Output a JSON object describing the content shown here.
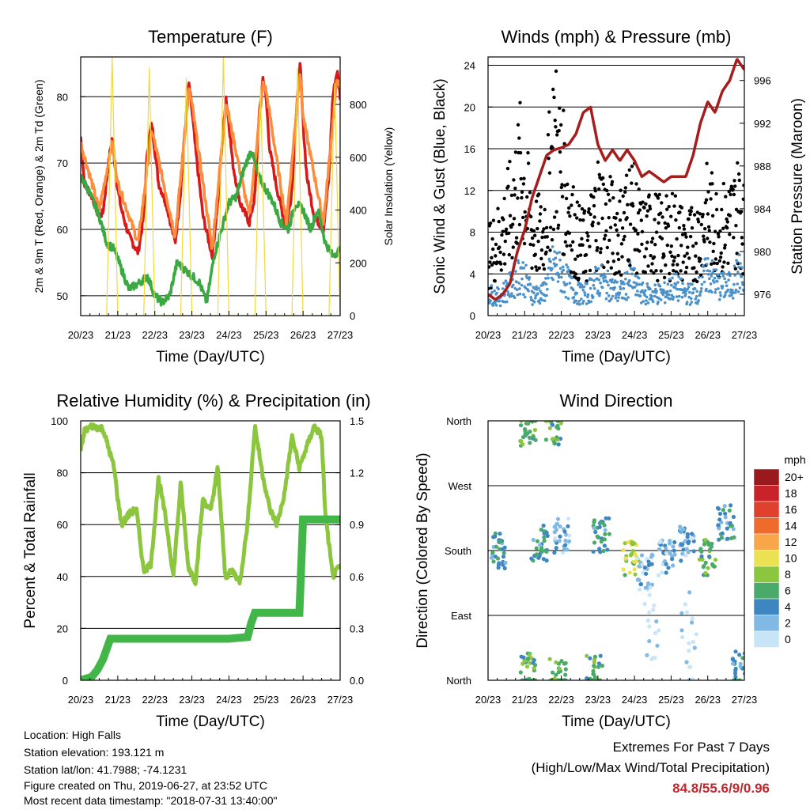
{
  "chart_data": [
    {
      "type": "line",
      "title": "Temperature (F)",
      "xlabel": "Time (Day/UTC)",
      "ylabel": "2m & 9m T (Red, Orange) & 2m Td (Green)",
      "ylabel_right": "Solar Insolation (Yellow)",
      "x_ticks": [
        "20/23",
        "21/23",
        "22/23",
        "23/23",
        "24/23",
        "25/23",
        "26/23",
        "27/23"
      ],
      "y_ticks": [
        50,
        60,
        70,
        80
      ],
      "y_ticks_right": [
        0,
        200,
        400,
        600,
        800
      ],
      "ylim": [
        47,
        86
      ],
      "ylim_right": [
        0,
        980
      ],
      "grid": true,
      "series": [
        {
          "color": "#d7191c",
          "x": [
            0,
            0.1,
            0.3,
            0.5,
            0.6,
            0.75,
            0.85,
            0.92,
            1.0,
            1.1,
            1.3,
            1.55,
            1.7,
            1.8,
            1.92,
            2.0,
            2.1,
            2.3,
            2.55,
            2.7,
            2.8,
            2.92,
            3.0,
            3.1,
            3.3,
            3.55,
            3.7,
            3.8,
            3.92,
            4.0,
            4.1,
            4.3,
            4.55,
            4.7,
            4.8,
            4.92,
            5.0,
            5.1,
            5.3,
            5.55,
            5.7,
            5.8,
            5.92,
            6.0,
            6.1,
            6.3,
            6.55,
            6.7,
            6.8,
            6.92,
            7.0
          ],
          "y": [
            74,
            67,
            65,
            62,
            62.5,
            70,
            74,
            70,
            66,
            63,
            59,
            56.5,
            62,
            72,
            76,
            72,
            67,
            64,
            58,
            66,
            74,
            82,
            78,
            72,
            62,
            56,
            64,
            72,
            80,
            76,
            70,
            64,
            61,
            65,
            76,
            83,
            80,
            72,
            66,
            60,
            66,
            76,
            85,
            76,
            68,
            62,
            60,
            68,
            80,
            84,
            80
          ]
        },
        {
          "color": "#fb8d3c",
          "x": [
            0,
            0.5,
            0.85,
            1.0,
            1.55,
            1.92,
            2.0,
            2.55,
            2.92,
            3.0,
            3.55,
            3.92,
            4.0,
            4.55,
            4.92,
            5.0,
            5.55,
            5.92,
            6.0,
            6.55,
            6.92,
            7.0
          ],
          "y": [
            73,
            63,
            73,
            67,
            58,
            75,
            73,
            59,
            81,
            79,
            57,
            79,
            77,
            62,
            82,
            81,
            61,
            84,
            77,
            61,
            83,
            81
          ]
        },
        {
          "color": "#3aa843",
          "x": [
            0,
            0.2,
            0.5,
            0.7,
            0.9,
            1.1,
            1.3,
            1.6,
            1.8,
            2.0,
            2.2,
            2.4,
            2.6,
            2.8,
            3.0,
            3.2,
            3.4,
            3.6,
            3.8,
            4.0,
            4.2,
            4.4,
            4.6,
            4.8,
            5.0,
            5.2,
            5.4,
            5.6,
            5.8,
            6.0,
            6.2,
            6.4,
            6.6,
            6.8,
            7.0
          ],
          "y": [
            68,
            66,
            62,
            58,
            57,
            54,
            51,
            52,
            53,
            50,
            49,
            50,
            55,
            54,
            53,
            52,
            49,
            56,
            60,
            64,
            65,
            69,
            72,
            68,
            66,
            64,
            61,
            60,
            64,
            63,
            60,
            63,
            58,
            56,
            57
          ]
        },
        {
          "color": "#f3d83a",
          "axis": "right",
          "x": [
            0.7,
            0.85,
            1.0,
            1.3,
            1.7,
            1.85,
            2.0,
            2.3,
            2.7,
            2.85,
            3.0,
            3.3,
            3.7,
            3.85,
            4.0,
            4.3,
            4.7,
            4.85,
            5.0,
            5.3,
            5.7,
            5.85,
            6.0,
            6.3,
            6.7,
            6.85,
            7.0
          ],
          "y": [
            0,
            980,
            0,
            0,
            0,
            940,
            0,
            0,
            0,
            900,
            0,
            0,
            0,
            980,
            0,
            0,
            0,
            860,
            0,
            0,
            0,
            940,
            0,
            0,
            0,
            880,
            0
          ]
        }
      ]
    },
    {
      "type": "line",
      "title": "Winds (mph) & Pressure (mb)",
      "xlabel": "Time (Day/UTC)",
      "ylabel": "Sonic Wind & Gust (Blue, Black)",
      "ylabel_right": "Station Pressure (Maroon)",
      "x_ticks": [
        "20/23",
        "21/23",
        "22/23",
        "23/23",
        "24/23",
        "25/23",
        "26/23",
        "27/23"
      ],
      "y_ticks": [
        0,
        4,
        8,
        12,
        16,
        20,
        24
      ],
      "y_ticks_right": [
        976,
        980,
        984,
        988,
        992,
        996
      ],
      "ylim": [
        0,
        24.8
      ],
      "ylim_right": [
        974,
        998.2
      ],
      "grid": true,
      "series": [
        {
          "color": "#000000",
          "x": [
            0,
            0.3,
            0.6,
            0.9,
            1.2,
            1.5,
            1.8,
            2.1,
            2.4,
            2.7,
            3.0,
            3.3,
            3.6,
            3.9,
            4.2,
            4.5,
            4.8,
            5.1,
            5.4,
            5.7,
            6.0,
            6.3,
            6.6,
            6.9,
            7.0
          ],
          "y": [
            7,
            9,
            12,
            17,
            10,
            9,
            21,
            15,
            9,
            8,
            13,
            11,
            10,
            13,
            9,
            10,
            9,
            10,
            8,
            9,
            12,
            10,
            11,
            13,
            10
          ]
        },
        {
          "color": "#4a90c9",
          "x": [
            0,
            0.3,
            0.6,
            0.9,
            1.2,
            1.5,
            1.8,
            2.1,
            2.4,
            2.7,
            3.0,
            3.3,
            3.6,
            3.9,
            4.2,
            4.5,
            4.8,
            5.1,
            5.4,
            5.7,
            6.0,
            6.3,
            6.6,
            6.9,
            7.0
          ],
          "y": [
            3,
            2.5,
            4,
            6,
            3,
            3,
            7,
            5,
            3,
            3,
            5,
            4,
            3,
            5,
            3,
            3,
            3,
            4,
            3,
            3,
            6,
            4,
            4,
            6,
            3
          ]
        },
        {
          "color": "#a51d1d",
          "axis": "right",
          "x": [
            0,
            0.2,
            0.4,
            0.6,
            0.8,
            1.0,
            1.2,
            1.4,
            1.6,
            1.8,
            2.0,
            2.2,
            2.4,
            2.6,
            2.8,
            3.0,
            3.2,
            3.4,
            3.6,
            3.8,
            4.0,
            4.2,
            4.4,
            4.6,
            4.8,
            5.0,
            5.2,
            5.4,
            5.6,
            5.8,
            6.0,
            6.2,
            6.4,
            6.6,
            6.8,
            7.0
          ],
          "y": [
            976,
            975.5,
            976,
            977,
            980,
            982,
            985,
            987,
            989,
            989.5,
            989.7,
            990,
            991,
            993,
            993.5,
            990,
            988.5,
            989.5,
            988.5,
            989.5,
            988.5,
            987,
            987.5,
            987,
            986.5,
            987,
            987,
            987,
            989,
            992,
            994,
            993,
            995,
            996,
            998,
            997
          ]
        }
      ]
    },
    {
      "type": "line",
      "title": "Relative Humidity (%) & Precipitation (in)",
      "xlabel": "Time (Day/UTC)",
      "ylabel": "Percent & Total Rainfall",
      "x_ticks": [
        "20/23",
        "21/23",
        "22/23",
        "23/23",
        "24/23",
        "25/23",
        "26/23",
        "27/23"
      ],
      "y_ticks": [
        0,
        20,
        40,
        60,
        80,
        100
      ],
      "y_ticks_right": [
        "0.0",
        "0.3",
        "0.6",
        "0.9",
        "1.2",
        "1.5"
      ],
      "ylim": [
        0,
        100
      ],
      "ylim_right": [
        0,
        1.5
      ],
      "grid": true,
      "series": [
        {
          "color": "#8cc63f",
          "x": [
            0,
            0.1,
            0.3,
            0.6,
            0.9,
            1.0,
            1.1,
            1.3,
            1.5,
            1.7,
            1.9,
            2.1,
            2.3,
            2.5,
            2.7,
            2.9,
            3.1,
            3.3,
            3.5,
            3.7,
            3.9,
            4.1,
            4.3,
            4.5,
            4.7,
            4.9,
            5.1,
            5.3,
            5.5,
            5.7,
            5.9,
            6.1,
            6.3,
            6.5,
            6.6,
            6.8,
            7.0
          ],
          "y": [
            88,
            96,
            98,
            97,
            82,
            70,
            60,
            64,
            66,
            42,
            45,
            78,
            62,
            40,
            76,
            44,
            38,
            70,
            65,
            82,
            40,
            42,
            38,
            60,
            98,
            80,
            66,
            60,
            72,
            94,
            82,
            90,
            98,
            94,
            64,
            40,
            44
          ]
        },
        {
          "color": "#43b649",
          "axis": "right",
          "x": [
            0,
            0.3,
            0.45,
            0.6,
            0.8,
            1.0,
            2.0,
            3.0,
            4.0,
            4.5,
            4.6,
            4.7,
            5.0,
            5.5,
            5.9,
            6.0,
            6.1,
            6.5,
            7.0
          ],
          "y": [
            0.0,
            0.02,
            0.06,
            0.12,
            0.24,
            0.24,
            0.24,
            0.24,
            0.24,
            0.25,
            0.33,
            0.39,
            0.39,
            0.39,
            0.39,
            0.93,
            0.93,
            0.93,
            0.93
          ]
        }
      ]
    },
    {
      "type": "scatter",
      "title": "Wind Direction",
      "xlabel": "Time (Day/UTC)",
      "ylabel": "Direction (Colored By Speed)",
      "x_ticks": [
        "20/23",
        "21/23",
        "22/23",
        "23/23",
        "24/23",
        "25/23",
        "26/23",
        "27/23"
      ],
      "y_ticks": [
        "North",
        "East",
        "South",
        "West",
        "North"
      ],
      "ylim": [
        0,
        360
      ],
      "grid": true,
      "legend": {
        "title": "mph",
        "position": "right",
        "labels": [
          "20+",
          "18",
          "16",
          "14",
          "12",
          "10",
          "8",
          "6",
          "4",
          "2",
          "0"
        ],
        "colors": [
          "#99191c",
          "#c8232a",
          "#e0412f",
          "#ef6b2c",
          "#f7a64a",
          "#ece053",
          "#8cc63f",
          "#4aaa69",
          "#3e86c0",
          "#80b9e4",
          "#c8e5f7"
        ]
      },
      "clusters": [
        {
          "x": 0.3,
          "y": 180,
          "speed": 4
        },
        {
          "x": 1.1,
          "y": 350,
          "speed": 6
        },
        {
          "x": 1.4,
          "y": 190,
          "speed": 4
        },
        {
          "x": 1.8,
          "y": 350,
          "speed": 6
        },
        {
          "x": 2.0,
          "y": 200,
          "speed": 2
        },
        {
          "x": 3.1,
          "y": 200,
          "speed": 4
        },
        {
          "x": 3.9,
          "y": 170,
          "speed": 8
        },
        {
          "x": 4.3,
          "y": 150,
          "speed": 2
        },
        {
          "x": 4.9,
          "y": 170,
          "speed": 2
        },
        {
          "x": 5.4,
          "y": 190,
          "speed": 2
        },
        {
          "x": 6.0,
          "y": 170,
          "speed": 6
        },
        {
          "x": 6.5,
          "y": 220,
          "speed": 4
        },
        {
          "x": 1.1,
          "y": 15,
          "speed": 6
        },
        {
          "x": 1.9,
          "y": 5,
          "speed": 6
        },
        {
          "x": 2.9,
          "y": 10,
          "speed": 6
        },
        {
          "x": 6.9,
          "y": 15,
          "speed": 4
        },
        {
          "x": 4.5,
          "y": 80,
          "speed": 0
        },
        {
          "x": 5.5,
          "y": 60,
          "speed": 0
        }
      ]
    }
  ],
  "info": {
    "location": "Location: High Falls",
    "elevation": "Station elevation: 193.121 m",
    "latlon": "Station lat/lon: 41.7988; -74.1231",
    "created": "Figure created on Thu, 2019-06-27, at 23:52 UTC",
    "recent": "Most recent data timestamp: \"2018-07-31 13:40:00\""
  },
  "extremes": {
    "heading": "Extremes For Past 7 Days",
    "subheading": "(High/Low/Max Wind/Total Precipitation)",
    "values": "84.8/55.6/9/0.96"
  }
}
